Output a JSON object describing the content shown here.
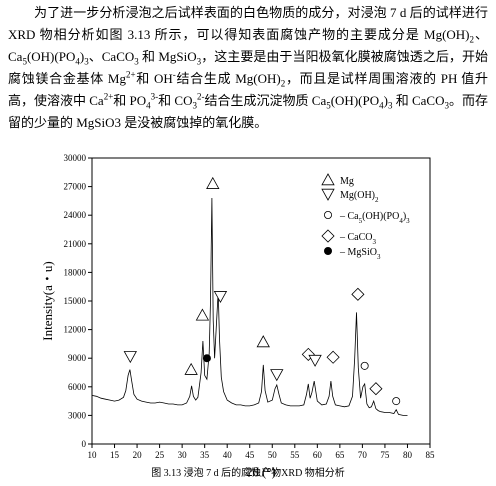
{
  "text": {
    "runs": [
      {
        "text": "为了进一步分析浸泡之后试样表面的白色物质的成分，对浸泡 7 d 后的试样进行 XRD 物相分析如图 3.13 所示，可以得知表面腐蚀产物的主要成分是 Mg(OH)"
      },
      {
        "text": "2",
        "style": "sub"
      },
      {
        "text": "、Ca"
      },
      {
        "text": "5",
        "style": "sub"
      },
      {
        "text": "(OH)(PO"
      },
      {
        "text": "4",
        "style": "sub"
      },
      {
        "text": ")"
      },
      {
        "text": "3",
        "style": "sub"
      },
      {
        "text": "、CaCO"
      },
      {
        "text": "3",
        "style": "sub"
      },
      {
        "text": " 和 MgSiO"
      },
      {
        "text": "3",
        "style": "sub"
      },
      {
        "text": "，这主要是由于当阳极氧化膜被腐蚀透之后，开始腐蚀镁合金基体 Mg"
      },
      {
        "text": "2+",
        "style": "sup"
      },
      {
        "text": "和 OH"
      },
      {
        "text": "-",
        "style": "sup"
      },
      {
        "text": "结合生成 Mg(OH)"
      },
      {
        "text": "2",
        "style": "sub"
      },
      {
        "text": "，而且是试样周围溶液的 PH 值升高，使溶液中 Ca"
      },
      {
        "text": "2+",
        "style": "sup"
      },
      {
        "text": "和 PO"
      },
      {
        "text": "4",
        "style": "sub"
      },
      {
        "text": "3-",
        "style": "sup"
      },
      {
        "text": "和 CO"
      },
      {
        "text": "3",
        "style": "sub"
      },
      {
        "text": "2-",
        "style": "sup"
      },
      {
        "text": "结合生成沉淀物质 Ca"
      },
      {
        "text": "5",
        "style": "sub"
      },
      {
        "text": "(OH)(PO"
      },
      {
        "text": "4",
        "style": "sub"
      },
      {
        "text": ")"
      },
      {
        "text": "3",
        "style": "sub"
      },
      {
        "text": " 和 CaCO"
      },
      {
        "text": "3",
        "style": "sub"
      },
      {
        "text": "。而存留的少量的 MgSiO3 是没被腐蚀掉的氧化膜。"
      }
    ]
  },
  "chart_data": {
    "type": "line",
    "color": "#000000",
    "xlabel": "2θ (°)",
    "ylabel": "Intensity(a・u)",
    "xlim": [
      10,
      85
    ],
    "xticks": [
      10,
      15,
      20,
      25,
      30,
      35,
      40,
      45,
      50,
      55,
      60,
      65,
      70,
      75,
      80,
      85
    ],
    "ylim": [
      0,
      30000
    ],
    "yticks": [
      0,
      3000,
      6000,
      9000,
      12000,
      15000,
      18000,
      21000,
      24000,
      27000,
      30000
    ],
    "x": [
      10,
      11,
      12,
      13,
      14,
      15,
      16,
      17,
      17.5,
      18,
      18.4,
      18.8,
      19.3,
      20,
      21,
      22,
      23,
      24,
      25,
      26,
      27,
      28,
      29,
      30,
      31,
      31.7,
      32.1,
      32.5,
      33,
      33.5,
      34.2,
      34.6,
      35,
      35.5,
      36,
      36.3,
      36.6,
      36.9,
      37.2,
      37.6,
      38,
      38.3,
      38.7,
      39.2,
      40,
      41,
      42,
      43,
      44,
      45,
      46,
      47,
      47.6,
      48,
      48.4,
      49,
      50,
      50.6,
      51,
      51.5,
      52,
      53,
      54,
      55,
      56,
      57,
      57.6,
      58,
      58.4,
      58.8,
      59.3,
      60,
      61,
      62,
      62.6,
      63,
      63.4,
      64,
      65,
      66,
      67,
      67.8,
      68.3,
      68.7,
      69.1,
      69.6,
      70.1,
      70.5,
      71,
      71.5,
      72,
      72.5,
      73,
      73.5,
      74,
      75,
      76,
      77,
      77.5,
      78,
      79,
      80
    ],
    "values": [
      5100,
      5000,
      4800,
      4700,
      4600,
      4500,
      4600,
      4900,
      5600,
      7200,
      7800,
      6600,
      5200,
      4700,
      4500,
      4400,
      4300,
      4300,
      4400,
      4300,
      4200,
      4200,
      4100,
      4100,
      4300,
      5000,
      6100,
      5000,
      4600,
      4900,
      7500,
      10800,
      7200,
      6800,
      9500,
      15000,
      25800,
      13000,
      9000,
      12500,
      16000,
      11000,
      7000,
      5500,
      4600,
      4300,
      4100,
      4100,
      4000,
      4000,
      4100,
      4300,
      5500,
      8300,
      5600,
      4400,
      4600,
      5800,
      6200,
      5200,
      4300,
      4100,
      4000,
      4000,
      4000,
      4100,
      5200,
      6300,
      4800,
      5400,
      6600,
      4500,
      4100,
      4200,
      5000,
      6600,
      5000,
      4100,
      4000,
      3900,
      4000,
      5000,
      9000,
      13800,
      8000,
      4800,
      6000,
      6300,
      4200,
      3800,
      3900,
      4500,
      3700,
      3500,
      3400,
      3300,
      3300,
      3200,
      3600,
      3100,
      3000,
      3000
    ],
    "markers": [
      {
        "x": 18.5,
        "y": 9200,
        "shape": "triangle-down"
      },
      {
        "x": 32,
        "y": 7800,
        "shape": "triangle-up"
      },
      {
        "x": 34.5,
        "y": 13500,
        "shape": "triangle-up"
      },
      {
        "x": 35.5,
        "y": 9000,
        "shape": "filled-circle"
      },
      {
        "x": 36.8,
        "y": 27300,
        "shape": "triangle-up"
      },
      {
        "x": 38.5,
        "y": 15500,
        "shape": "triangle-down"
      },
      {
        "x": 48,
        "y": 10700,
        "shape": "triangle-up"
      },
      {
        "x": 51,
        "y": 7300,
        "shape": "triangle-down"
      },
      {
        "x": 58,
        "y": 9400,
        "shape": "diamond"
      },
      {
        "x": 59.5,
        "y": 8800,
        "shape": "triangle-down"
      },
      {
        "x": 63.5,
        "y": 9100,
        "shape": "diamond"
      },
      {
        "x": 69,
        "y": 15700,
        "shape": "diamond"
      },
      {
        "x": 70.5,
        "y": 8200,
        "shape": "circle"
      },
      {
        "x": 73,
        "y": 5800,
        "shape": "diamond"
      },
      {
        "x": 77.5,
        "y": 4500,
        "shape": "circle"
      }
    ],
    "legend": [
      {
        "shape": "triangle-up",
        "label": [
          {
            "text": "Mg"
          }
        ]
      },
      {
        "shape": "triangle-down",
        "label": [
          {
            "text": "Mg(OH)"
          },
          {
            "text": "2",
            "style": "sub"
          }
        ]
      },
      {
        "shape": "circle",
        "label": [
          {
            "text": "– Ca"
          },
          {
            "text": "5",
            "style": "sub"
          },
          {
            "text": "(OH)(PO"
          },
          {
            "text": "4",
            "style": "sub"
          },
          {
            "text": ")"
          },
          {
            "text": "3",
            "style": "sub"
          }
        ]
      },
      {
        "shape": "diamond",
        "label": [
          {
            "text": "– CaCO"
          },
          {
            "text": "3",
            "style": "sub"
          }
        ]
      },
      {
        "shape": "filled-circle",
        "label": [
          {
            "text": "– MgSiO"
          },
          {
            "text": "3",
            "style": "sub"
          }
        ]
      }
    ]
  },
  "caption": "图 3.13 浸泡 7 d 后的腐蚀产物XRD 物相分析"
}
